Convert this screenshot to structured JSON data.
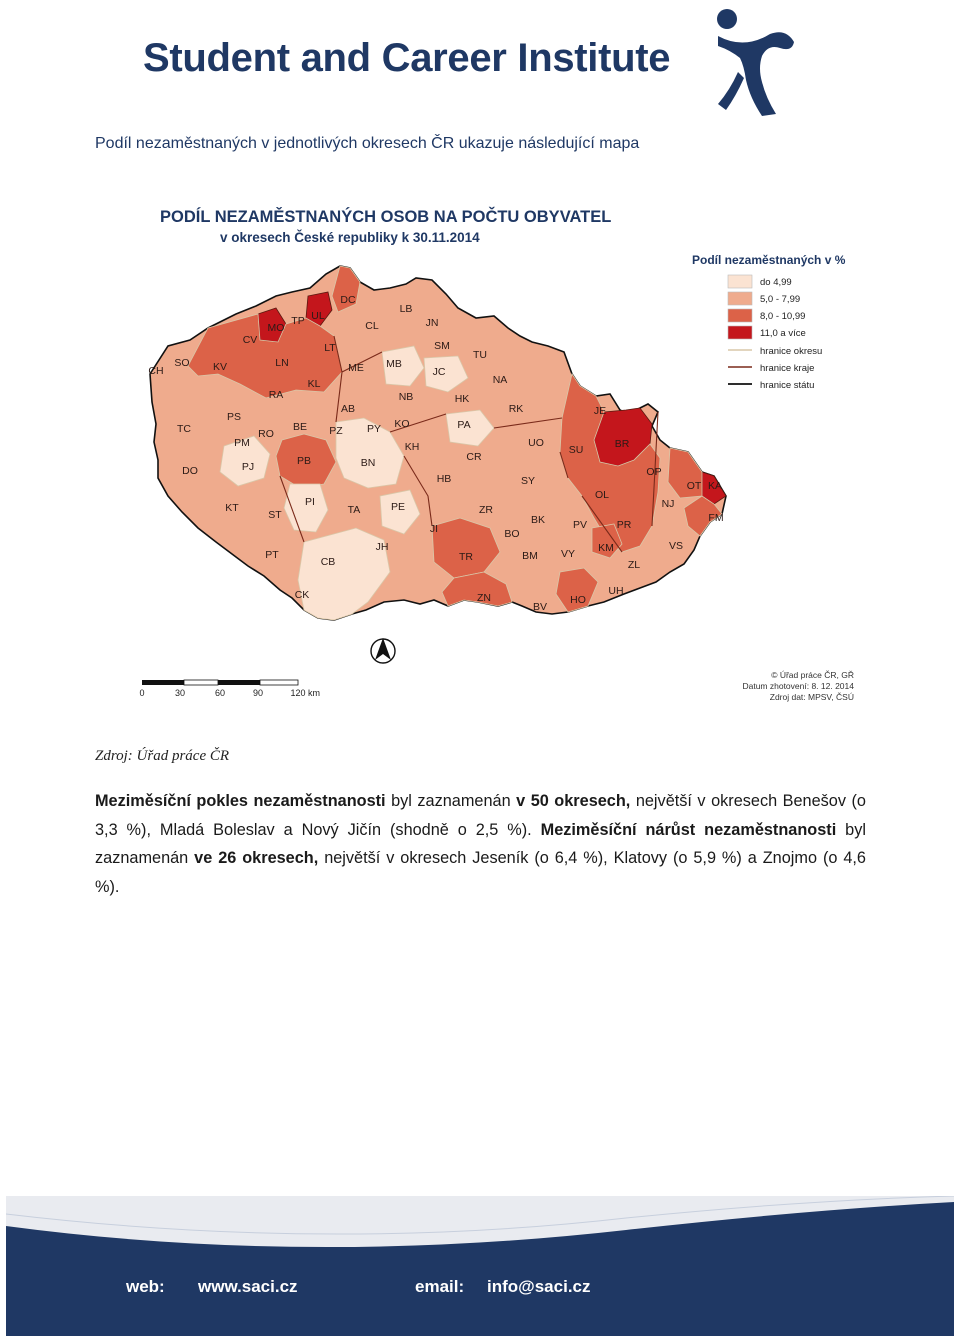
{
  "header": {
    "title": "Student and Career Institute",
    "logo_icon": "person-figure-logo-icon"
  },
  "intro": "Podíl nezaměstnaných v jednotlivých okresech ČR ukazuje následující mapa",
  "map": {
    "title": "PODÍL NEZAMĚSTNANÝCH OSOB NA POČTU OBYVATEL",
    "subtitle": "v okresech České republiky k 30.11.2014",
    "legend": {
      "title": "Podíl nezaměstnaných v %",
      "classes": [
        {
          "label": "do 4,99",
          "color": "#fbe3d2"
        },
        {
          "label": "5,0 - 7,99",
          "color": "#efab8d"
        },
        {
          "label": "8,0 - 10,99",
          "color": "#dc6248"
        },
        {
          "label": "11,0 a více",
          "color": "#c4161c"
        }
      ],
      "lines": [
        {
          "label": "hranice okresu",
          "color": "#d9c7a8"
        },
        {
          "label": "hranice kraje",
          "color": "#7a2a1a"
        },
        {
          "label": "hranice státu",
          "color": "#111111"
        }
      ]
    },
    "scale": {
      "ticks": [
        "0",
        "30",
        "60",
        "90",
        "120"
      ],
      "unit": "km"
    },
    "north_icon": "north-arrow-icon",
    "credits": [
      "© Úřad práce ČR, GŘ",
      "Datum zhotovení: 8. 12. 2014",
      "Zdroj dat: MPSV, ČSÚ"
    ],
    "districts": [
      {
        "code": "CH",
        "class": 2
      },
      {
        "code": "SO",
        "class": 2
      },
      {
        "code": "KV",
        "class": 2
      },
      {
        "code": "CV",
        "class": 2
      },
      {
        "code": "MO",
        "class": 3
      },
      {
        "code": "TP",
        "class": 2
      },
      {
        "code": "UL",
        "class": 3
      },
      {
        "code": "DC",
        "class": 2
      },
      {
        "code": "LN",
        "class": 2
      },
      {
        "code": "LT",
        "class": 2
      },
      {
        "code": "KL",
        "class": 2
      },
      {
        "code": "ME",
        "class": 1
      },
      {
        "code": "CL",
        "class": 1
      },
      {
        "code": "LB",
        "class": 1
      },
      {
        "code": "JN",
        "class": 1
      },
      {
        "code": "SM",
        "class": 1
      },
      {
        "code": "TU",
        "class": 1
      },
      {
        "code": "MB",
        "class": 0
      },
      {
        "code": "JC",
        "class": 0
      },
      {
        "code": "NA",
        "class": 1
      },
      {
        "code": "RA",
        "class": 1
      },
      {
        "code": "PS",
        "class": 1
      },
      {
        "code": "TC",
        "class": 1
      },
      {
        "code": "AB",
        "class": 1
      },
      {
        "code": "PZ",
        "class": 0
      },
      {
        "code": "PY",
        "class": 0
      },
      {
        "code": "NB",
        "class": 1
      },
      {
        "code": "HK",
        "class": 1
      },
      {
        "code": "RK",
        "class": 1
      },
      {
        "code": "KO",
        "class": 1
      },
      {
        "code": "PA",
        "class": 0
      },
      {
        "code": "RO",
        "class": 1
      },
      {
        "code": "BE",
        "class": 0
      },
      {
        "code": "PM",
        "class": 0
      },
      {
        "code": "PJ",
        "class": 0
      },
      {
        "code": "DO",
        "class": 1
      },
      {
        "code": "PB",
        "class": 2
      },
      {
        "code": "BN",
        "class": 0
      },
      {
        "code": "KH",
        "class": 1
      },
      {
        "code": "CR",
        "class": 1
      },
      {
        "code": "UO",
        "class": 1
      },
      {
        "code": "JE",
        "class": 2
      },
      {
        "code": "SU",
        "class": 2
      },
      {
        "code": "BR",
        "class": 3
      },
      {
        "code": "OP",
        "class": 2
      },
      {
        "code": "OT",
        "class": 2
      },
      {
        "code": "KA",
        "class": 3
      },
      {
        "code": "KT",
        "class": 1
      },
      {
        "code": "ST",
        "class": 1
      },
      {
        "code": "PI",
        "class": 0
      },
      {
        "code": "TA",
        "class": 1
      },
      {
        "code": "PE",
        "class": 0
      },
      {
        "code": "HB",
        "class": 1
      },
      {
        "code": "SY",
        "class": 1
      },
      {
        "code": "OL",
        "class": 2
      },
      {
        "code": "NJ",
        "class": 1
      },
      {
        "code": "FM",
        "class": 2
      },
      {
        "code": "JI",
        "class": 1
      },
      {
        "code": "ZR",
        "class": 1
      },
      {
        "code": "BK",
        "class": 1
      },
      {
        "code": "PV",
        "class": 1
      },
      {
        "code": "PR",
        "class": 2
      },
      {
        "code": "BO",
        "class": 1
      },
      {
        "code": "PT",
        "class": 1
      },
      {
        "code": "CB",
        "class": 0
      },
      {
        "code": "JH",
        "class": 0
      },
      {
        "code": "TR",
        "class": 2
      },
      {
        "code": "BM",
        "class": 1
      },
      {
        "code": "VY",
        "class": 1
      },
      {
        "code": "KM",
        "class": 2
      },
      {
        "code": "ZL",
        "class": 1
      },
      {
        "code": "VS",
        "class": 1
      },
      {
        "code": "CK",
        "class": 1
      },
      {
        "code": "ZN",
        "class": 2
      },
      {
        "code": "BV",
        "class": 1
      },
      {
        "code": "HO",
        "class": 2
      },
      {
        "code": "UH",
        "class": 1
      }
    ]
  },
  "source_note": "Zdroj: Úřad práce ČR",
  "paragraph": {
    "s1_bold": "Meziměsíční pokles nezaměstnanosti",
    "s1_a": " byl zaznamenán ",
    "s1_bold2": "v 50 okresech,",
    "s1_b": " největší v okresech Benešov (o 3,3 %), Mladá Boleslav a Nový Jičín (shodně o 2,5 %). ",
    "s2_bold": "Meziměsíční nárůst nezaměstnanosti",
    "s2_a": " byl zaznamenán ",
    "s2_bold2": "ve 26 okresech,",
    "s2_b": " největší v okresech Jeseník (o 6,4 %), Klatovy (o 5,9 %) a Znojmo (o 4,6 %)."
  },
  "footer": {
    "web_label": "web:",
    "web_value": "www.saci.cz",
    "email_label": "email:",
    "email_value": "info@saci.cz",
    "color": "#1f3864"
  }
}
